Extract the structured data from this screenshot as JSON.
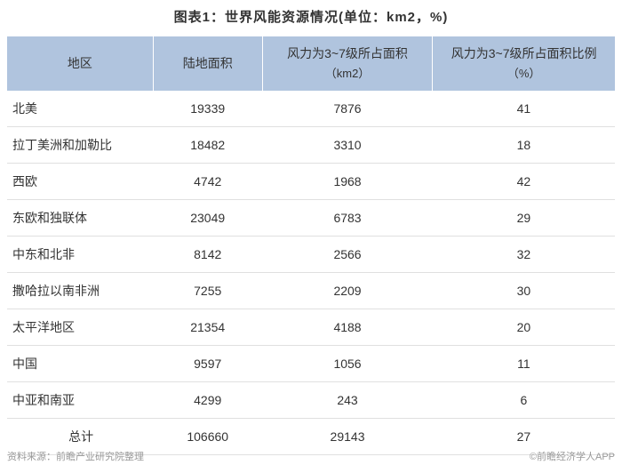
{
  "title": "图表1：世界风能资源情况(单位：km2，%)",
  "table": {
    "type": "table",
    "header_bg": "#b0c4de",
    "border_color": "#e0e0e0",
    "text_color": "#333333",
    "font_size": 14,
    "columns": [
      {
        "label_top": "地区",
        "label_bottom": "",
        "width": "24%"
      },
      {
        "label_top": "陆地面积",
        "label_bottom": "",
        "width": "18%"
      },
      {
        "label_top": "风力为3~7级所占面积",
        "label_bottom": "（km2）",
        "width": "28%"
      },
      {
        "label_top": "风力为3~7级所占面积比例",
        "label_bottom": "（%）",
        "width": "30%"
      }
    ],
    "rows": [
      {
        "region": "北美",
        "land": "19339",
        "wind": "7876",
        "pct": "41"
      },
      {
        "region": "拉丁美洲和加勒比",
        "land": "18482",
        "wind": "3310",
        "pct": "18"
      },
      {
        "region": "西欧",
        "land": "4742",
        "wind": "1968",
        "pct": "42"
      },
      {
        "region": "东欧和独联体",
        "land": "23049",
        "wind": "6783",
        "pct": "29"
      },
      {
        "region": "中东和北非",
        "land": "8142",
        "wind": "2566",
        "pct": "32"
      },
      {
        "region": "撒哈拉以南非洲",
        "land": "7255",
        "wind": "2209",
        "pct": "30"
      },
      {
        "region": "太平洋地区",
        "land": "21354",
        "wind": "4188",
        "pct": "20"
      },
      {
        "region": "中国",
        "land": "9597",
        "wind": "1056",
        "pct": "11"
      },
      {
        "region": "中亚和南亚",
        "land": "4299",
        "wind": "243",
        "pct": "6"
      }
    ],
    "total": {
      "region": "总计",
      "land": "106660",
      "wind": "29143",
      "pct": "27"
    }
  },
  "footer": {
    "source": "资料来源：前瞻产业研究院整理",
    "copyright": "©前瞻经济学人APP"
  }
}
